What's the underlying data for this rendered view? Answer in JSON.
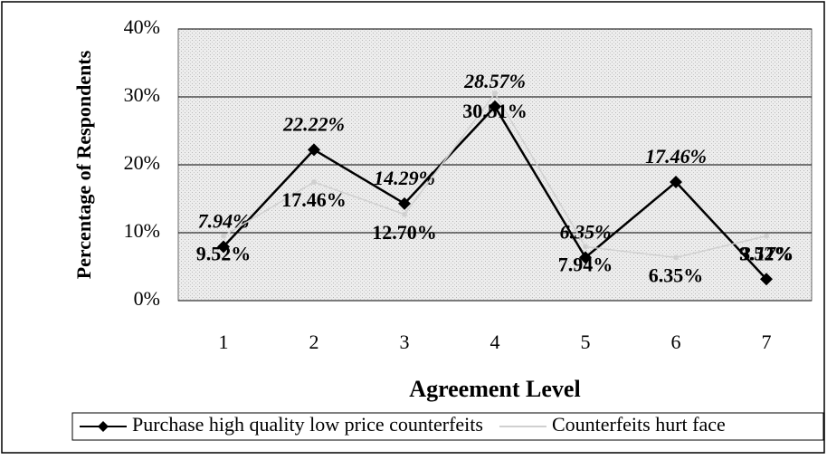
{
  "chart_data": {
    "type": "line",
    "x_label": "Agreement Level",
    "y_label": "Percentage of Respondents",
    "categories": [
      "1",
      "2",
      "3",
      "4",
      "5",
      "6",
      "7"
    ],
    "series": [
      {
        "name": "Purchase high quality low price counterfeits",
        "color": "#000000",
        "values": [
          7.94,
          22.22,
          14.29,
          28.57,
          6.35,
          17.46,
          3.17
        ],
        "value_labels": [
          "7.94%",
          "22.22%",
          "14.29%",
          "28.57%",
          "6.35%",
          "17.46%",
          "3.17%"
        ]
      },
      {
        "name": "Counterfeits hurt face",
        "color": "#d0d0d0",
        "values": [
          9.52,
          17.46,
          12.7,
          30.51,
          7.94,
          6.35,
          9.52
        ],
        "value_labels": [
          "9.52%",
          "17.46%",
          "12.70%",
          "30.51%",
          "7.94%",
          "6.35%",
          "9.52%"
        ]
      }
    ],
    "ylim": [
      0,
      40
    ],
    "yticks": [
      {
        "value": 0,
        "label": "0%"
      },
      {
        "value": 10,
        "label": "10%"
      },
      {
        "value": 20,
        "label": "20%"
      },
      {
        "value": 30,
        "label": "30%"
      },
      {
        "value": 40,
        "label": "40%"
      }
    ],
    "grid": true,
    "legend": "bottom"
  }
}
